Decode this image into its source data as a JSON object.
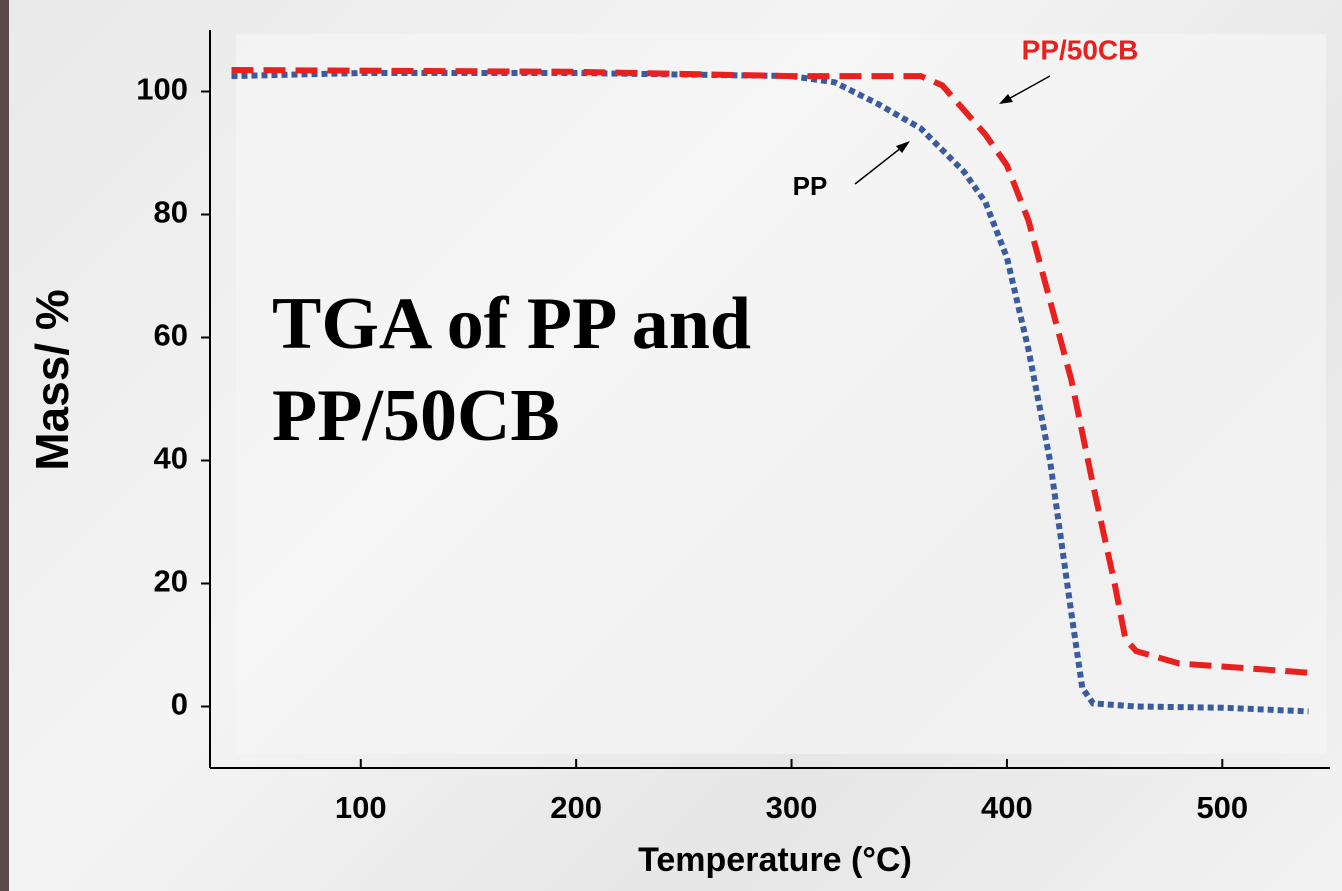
{
  "chart_data": {
    "type": "line",
    "title": "TGA of PP and PP/50CB",
    "x_label": "Temperature (°C)",
    "y_label": "Mass/ %",
    "xlim": [
      30,
      550
    ],
    "xticks": [
      100,
      200,
      300,
      400,
      500
    ],
    "ylim": [
      -10,
      110
    ],
    "yticks": [
      0,
      20,
      40,
      60,
      80,
      100
    ],
    "annotations": [
      "PP/50CB",
      "PP"
    ],
    "series": [
      {
        "name": "PP",
        "color": "#3a5b9c",
        "dash": "dotted",
        "x": [
          40,
          100,
          200,
          300,
          320,
          340,
          360,
          380,
          390,
          400,
          410,
          420,
          430,
          435,
          440,
          460,
          500,
          540
        ],
        "values": [
          102.5,
          103,
          103,
          102.5,
          101.5,
          98,
          94,
          87,
          82,
          73,
          58,
          40,
          15,
          3,
          0.5,
          0,
          -0.2,
          -0.8
        ]
      },
      {
        "name": "PP/50CB",
        "color": "#e8201e",
        "dash": "dashed",
        "x": [
          40,
          200,
          300,
          340,
          360,
          370,
          380,
          390,
          400,
          410,
          420,
          430,
          440,
          450,
          455,
          460,
          480,
          500,
          540
        ],
        "values": [
          103.5,
          103.2,
          102.5,
          102.5,
          102.5,
          101,
          97,
          93,
          88,
          79,
          66,
          53,
          36,
          20,
          11,
          9,
          7,
          6.5,
          5.5
        ]
      }
    ]
  }
}
